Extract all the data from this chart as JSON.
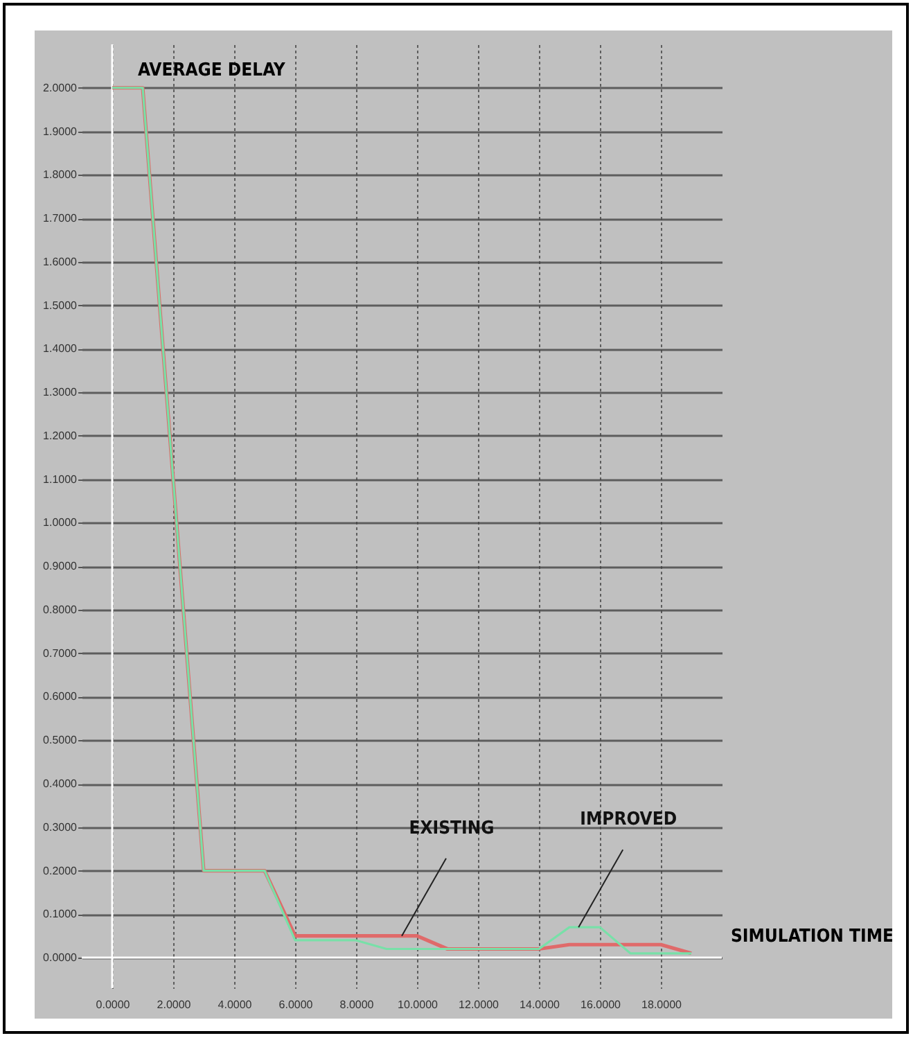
{
  "chart_data": {
    "type": "line",
    "xlabel": "SIMULATION TIME",
    "ylabel": "AVERAGE DELAY",
    "xlim": [
      -1,
      20
    ],
    "ylim": [
      -0.07,
      2.1
    ],
    "xticks": [
      {
        "value": 0,
        "label": "0.0000"
      },
      {
        "value": 2,
        "label": "2.0000"
      },
      {
        "value": 4,
        "label": "4.0000"
      },
      {
        "value": 6,
        "label": "6.0000"
      },
      {
        "value": 8,
        "label": "8.0000"
      },
      {
        "value": 10,
        "label": "10.0000"
      },
      {
        "value": 12,
        "label": "12.0000"
      },
      {
        "value": 14,
        "label": "14.0000"
      },
      {
        "value": 16,
        "label": "16.0000"
      },
      {
        "value": 18,
        "label": "18.0000"
      }
    ],
    "yticks": [
      {
        "value": 0,
        "label": "0.0000"
      },
      {
        "value": 0.1,
        "label": "0.1000"
      },
      {
        "value": 0.2,
        "label": "0.2000"
      },
      {
        "value": 0.3,
        "label": "0.3000"
      },
      {
        "value": 0.4,
        "label": "0.4000"
      },
      {
        "value": 0.5,
        "label": "0.5000"
      },
      {
        "value": 0.6,
        "label": "0.6000"
      },
      {
        "value": 0.7,
        "label": "0.7000"
      },
      {
        "value": 0.8,
        "label": "0.8000"
      },
      {
        "value": 0.9,
        "label": "0.9000"
      },
      {
        "value": 1,
        "label": "1.0000"
      },
      {
        "value": 1.1,
        "label": "1.1000"
      },
      {
        "value": 1.2,
        "label": "1.2000"
      },
      {
        "value": 1.3,
        "label": "1.3000"
      },
      {
        "value": 1.4,
        "label": "1.4000"
      },
      {
        "value": 1.5,
        "label": "1.5000"
      },
      {
        "value": 1.6,
        "label": "1.6000"
      },
      {
        "value": 1.7,
        "label": "1.7000"
      },
      {
        "value": 1.8,
        "label": "1.8000"
      },
      {
        "value": 1.9,
        "label": "1.9000"
      },
      {
        "value": 2,
        "label": "2.0000"
      }
    ],
    "grid": true,
    "marker": "none",
    "line_style": "solid",
    "series": [
      {
        "color": "#e06a6a",
        "x": [
          0,
          1,
          3,
          5,
          6,
          10,
          11,
          14,
          15,
          18,
          19
        ],
        "values": [
          2,
          2,
          0.2,
          0.2,
          0.05,
          0.05,
          0.02,
          0.02,
          0.03,
          0.03,
          0.01
        ]
      },
      {
        "color": "#78e0a8",
        "x": [
          0,
          1,
          3,
          5,
          6,
          8,
          9,
          14,
          15,
          16,
          17,
          18,
          19
        ],
        "values": [
          2,
          2,
          0.2,
          0.2,
          0.04,
          0.04,
          0.02,
          0.02,
          0.07,
          0.07,
          0.01,
          0.01,
          0.01
        ]
      }
    ],
    "annotations": [
      {
        "text": "EXISTING",
        "x": 9.5,
        "y": 0.05
      },
      {
        "text": "IMPROVED",
        "x": 15.3,
        "y": 0.07
      }
    ]
  }
}
